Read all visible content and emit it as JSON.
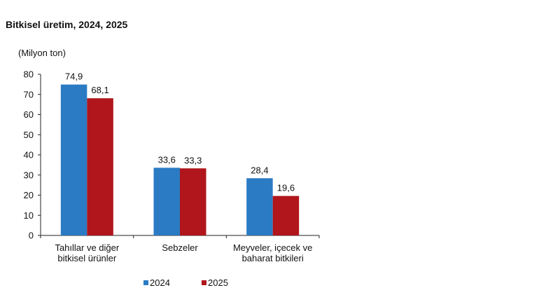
{
  "chart_data": {
    "type": "bar",
    "title": "Bitkisel üretim, 2024, 2025",
    "ylabel": "(Milyon ton)",
    "xlabel": "",
    "categories": [
      [
        "Tahıllar ve diğer",
        "bitkisel ürünler"
      ],
      [
        "Sebzeler"
      ],
      [
        "Meyveler, içecek ve",
        "baharat  bitkileri"
      ]
    ],
    "series": [
      {
        "name": "2024",
        "values": [
          74.9,
          33.6,
          28.4
        ],
        "labels": [
          "74,9",
          "33,6",
          "28,4"
        ],
        "color": "#2a7bc4"
      },
      {
        "name": "2025",
        "values": [
          68.1,
          33.3,
          19.6
        ],
        "labels": [
          "68,1",
          "33,3",
          "19,6"
        ],
        "color": "#b0161b"
      }
    ],
    "ylim": [
      0,
      80
    ],
    "yticks": [
      0,
      10,
      20,
      30,
      40,
      50,
      60,
      70,
      80
    ],
    "grid": false,
    "legend": "bottom"
  }
}
